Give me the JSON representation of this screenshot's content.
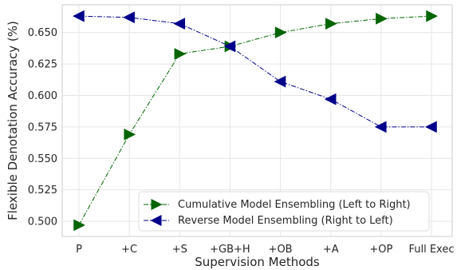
{
  "chart_data": {
    "type": "line",
    "title": "",
    "xlabel": "Supervision Methods",
    "ylabel": "Flexible Denotation Accuracy (%)",
    "categories": [
      "P",
      "+C",
      "+S",
      "+GB+H",
      "+OB",
      "+A",
      "+OP",
      "Full Exec"
    ],
    "ylim": [
      0.488,
      0.672
    ],
    "yticks": [
      "0.500",
      "0.525",
      "0.550",
      "0.575",
      "0.600",
      "0.625",
      "0.650"
    ],
    "ytick_values": [
      0.5,
      0.525,
      0.55,
      0.575,
      0.6,
      0.625,
      0.65
    ],
    "grid": true,
    "legend_position": "lower-right",
    "series": [
      {
        "name": "Cumulative Model Ensembling (Left to Right)",
        "color": "#006400",
        "marker": "triangle-right",
        "line_style": "dash-dot",
        "values": [
          0.497,
          0.569,
          0.633,
          0.639,
          0.65,
          0.657,
          0.661,
          0.663
        ]
      },
      {
        "name": "Reverse Model Ensembling (Right to Left)",
        "color": "#00008b",
        "marker": "triangle-left",
        "line_style": "dash-dot",
        "values": [
          0.663,
          0.662,
          0.657,
          0.639,
          0.611,
          0.597,
          0.575,
          0.575
        ]
      }
    ]
  }
}
